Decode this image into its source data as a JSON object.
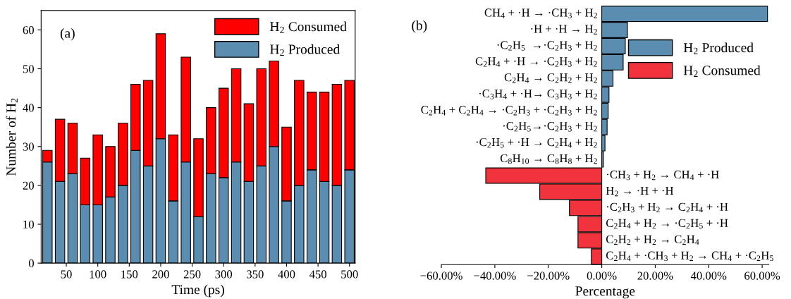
{
  "chart_data": [
    {
      "type": "bar",
      "stacked": true,
      "xlabel": "Time (ps)",
      "ylabel": "Number of H$_{2}$",
      "annotations": [
        "(a)"
      ],
      "x": [
        20,
        40,
        60,
        80,
        100,
        120,
        140,
        160,
        180,
        200,
        220,
        240,
        260,
        280,
        300,
        320,
        340,
        360,
        380,
        400,
        420,
        440,
        460,
        480,
        500
      ],
      "series": [
        {
          "name": "H$_{2}$ Produced",
          "color": "#5b8db0",
          "values": [
            26,
            21,
            23,
            15,
            15,
            17,
            20,
            29,
            25,
            32,
            16,
            26,
            12,
            23,
            22,
            26,
            21,
            25,
            30,
            16,
            20,
            24,
            21,
            20,
            24
          ]
        },
        {
          "name": "H$_{2}$ Consumed",
          "color": "#ff0000",
          "values": [
            3,
            16,
            13,
            12,
            18,
            13,
            16,
            17,
            22,
            27,
            17,
            27,
            20,
            17,
            23,
            24,
            20,
            25,
            22,
            19,
            27,
            20,
            23,
            26,
            23
          ]
        }
      ],
      "xlim": [
        10,
        509
      ],
      "xticks": [
        50,
        100,
        150,
        200,
        250,
        300,
        350,
        400,
        450,
        500
      ],
      "ylim": [
        0,
        65
      ],
      "yticks": [
        0,
        10,
        20,
        30,
        40,
        50,
        60
      ],
      "legend": "top right",
      "grid": false
    },
    {
      "type": "bar",
      "orientation": "horizontal",
      "xlabel": "Percentage",
      "annotations": [
        "(b)"
      ],
      "categories": [
        "CH$_{4}$ + ·H → ·CH$_{3}$ + H$_{2}$",
        "·H + ·H → H$_{2}$",
        "·C$_{2}$H$_{5}$  →·C$_{2}$H$_{3}$ + H$_{2}$",
        "C$_{2}$H$_{4}$ + ·H → ·C$_{2}$H$_{3}$ + H$_{2}$",
        "C$_{2}$H$_{4}$ → C$_{2}$H$_{2}$ + H$_{2}$",
        "·C$_{3}$H$_{4}$ + ·H→ C$_{3}$H$_{3}$ + H$_{2}$",
        "C$_{2}$H$_{4}$ + C$_{2}$H$_{4}$ → ·C$_{2}$H$_{3}$ + ·C$_{2}$H$_{3}$ + H$_{2}$",
        "·C$_{2}$H$_{5}$→·C$_{2}$H$_{3}$ + H$_{2}$",
        "·C$_{2}$H$_{5}$ + ·H → C$_{2}$H$_{4}$ + H$_{2}$",
        "C$_{8}$H$_{10}$ → C$_{8}$H$_{8}$ + H$_{2}$",
        "·CH$_{3}$ + H$_{2}$ → CH$_{4}$ + ·H",
        "H$_{2}$ → ·H + ·H",
        "·C$_{2}$H$_{3}$ + H$_{2}$ → C$_{2}$H$_{4}$ + ·H",
        "C$_{2}$H$_{4}$ + H$_{2}$ → ·C$_{2}$H$_{5}$ + ·H",
        "C$_{2}$H$_{2}$ + H$_{2}$ → C$_{2}$H$_{4}$",
        "C$_{2}$H$_{4}$ + ·CH$_{3}$ + H$_{2}$ → CH$_{4}$ + ·C$_{2}$H$_{5}$"
      ],
      "series": [
        {
          "name": "H$_{2}$ Produced",
          "color": "#5b8db0",
          "values": [
            62,
            9.6,
            8.8,
            8.0,
            4.2,
            2.7,
            2.4,
            2.0,
            1.2,
            0.6,
            null,
            null,
            null,
            null,
            null,
            null
          ]
        },
        {
          "name": "H$_{2}$ Consumed",
          "color": "#f0333c",
          "values": [
            null,
            null,
            null,
            null,
            null,
            null,
            null,
            null,
            null,
            null,
            -43.4,
            -23.2,
            -12.1,
            -8.9,
            -8.9,
            -3.9
          ]
        }
      ],
      "xlim": [
        -60,
        62.5
      ],
      "xticks": [
        {
          "value": -60,
          "label": "−60.00%"
        },
        {
          "value": -40,
          "label": "−40.00%"
        },
        {
          "value": -20,
          "label": "−20.00%"
        },
        {
          "value": 0,
          "label": "0.00%"
        },
        {
          "value": 20,
          "label": "20.00%"
        },
        {
          "value": 40,
          "label": "40.00%"
        },
        {
          "value": 60,
          "label": "60.00%"
        }
      ],
      "tick_labels": "x",
      "legend": "top right",
      "grid": false
    }
  ]
}
